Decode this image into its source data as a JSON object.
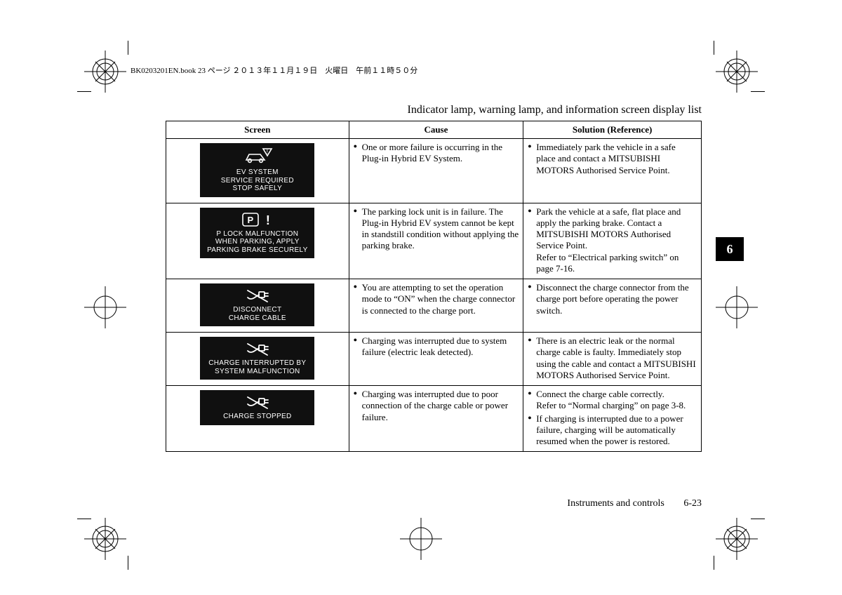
{
  "meta": {
    "header_line": "BK0203201EN.book  23 ページ  ２０１３年１１月１９日　火曜日　午前１１時５０分",
    "page_title": "Indicator lamp, warning lamp, and information screen display list",
    "footer_section": "Instruments and controls",
    "footer_page": "6-23",
    "tab_label": "6"
  },
  "columns": {
    "screen": "Screen",
    "cause": "Cause",
    "solution": "Solution (Reference)"
  },
  "rows": [
    {
      "icon": "car-warn",
      "screen_text": "EV SYSTEM\nSERVICE REQUIRED\nSTOP SAFELY",
      "cause": [
        "One or more failure is occurring in the Plug-in Hybrid EV System."
      ],
      "solution": [
        "Immediately park the vehicle in a safe place and contact a MITSUBISHI MOTORS Authorised Service Point."
      ]
    },
    {
      "icon": "p-lock",
      "screen_text": "P LOCK MALFUNCTION\nWHEN PARKING, APPLY\nPARKING BRAKE SECURELY",
      "cause": [
        "The parking lock unit is in failure. The Plug-in Hybrid EV system cannot be kept in standstill condition without applying the parking brake."
      ],
      "solution": [
        "Park the vehicle at a safe, flat place and apply the parking brake. Contact a MITSUBISHI MOTORS Authorised Service Point.\nRefer to “Electrical parking switch” on page 7-16."
      ]
    },
    {
      "icon": "plug-slash",
      "screen_text": "DISCONNECT\nCHARGE CABLE",
      "cause": [
        "You are attempting to set the operation mode to “ON” when the charge connector is connected to the charge port."
      ],
      "solution": [
        "Disconnect the charge connector from the charge port before operating the power switch."
      ]
    },
    {
      "icon": "plug-slash",
      "screen_text": "CHARGE INTERRUPTED BY\nSYSTEM MALFUNCTION",
      "cause": [
        "Charging was interrupted due to system failure (electric leak detected)."
      ],
      "solution": [
        "There is an electric leak or the normal charge cable is faulty. Immediately stop using the cable and contact a MITSUBISHI MOTORS Authorised Service Point."
      ]
    },
    {
      "icon": "plug-slash",
      "screen_text": "CHARGE STOPPED",
      "cause": [
        "Charging was interrupted due to poor connection of the charge cable or power failure."
      ],
      "solution": [
        "Connect the charge cable correctly.\nRefer to “Normal charging” on page 3-8.",
        "If charging is interrupted due to a power failure, charging will be automatically resumed when the power is restored."
      ]
    }
  ],
  "style": {
    "screen_bg": "#101010",
    "screen_fg": "#ffffff",
    "text_color": "#000000",
    "border_color": "#000000"
  }
}
